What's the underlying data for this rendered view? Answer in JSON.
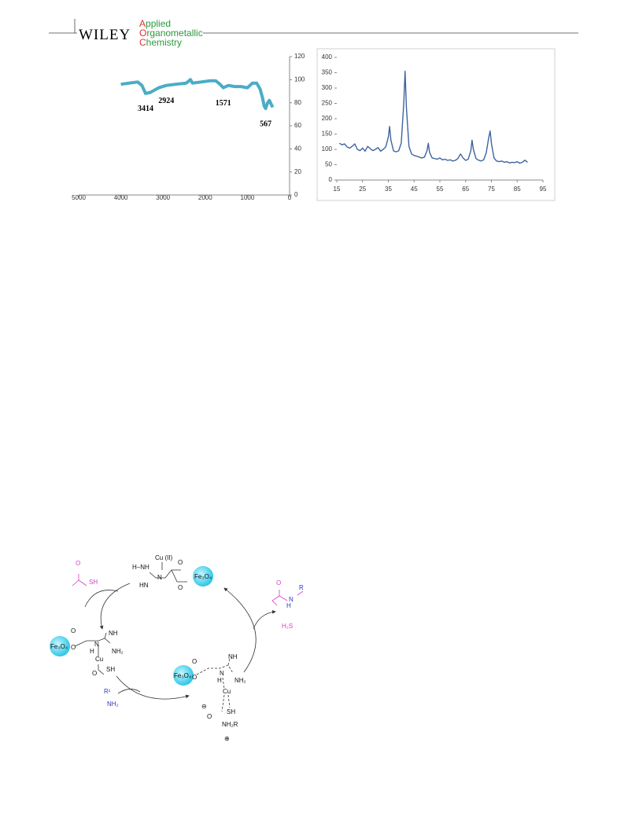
{
  "header": {
    "publisher": "WILEY",
    "journal": [
      "Applied",
      "Organometallic",
      "Chemistry"
    ]
  },
  "chart_data": [
    {
      "type": "line",
      "color": "#4bacc6",
      "x": [
        4000,
        3800,
        3600,
        3500,
        3414,
        3300,
        3100,
        2924,
        2700,
        2450,
        2350,
        2300,
        2100,
        1900,
        1750,
        1650,
        1571,
        1450,
        1300,
        1150,
        1000,
        880,
        780,
        700,
        640,
        600,
        567,
        520,
        480,
        440,
        400
      ],
      "values": [
        96,
        97,
        98,
        95,
        88,
        89,
        93,
        95,
        96,
        97,
        100,
        97,
        98,
        99,
        99,
        96,
        93,
        95,
        94,
        94,
        93,
        97,
        97,
        92,
        84,
        77,
        75,
        80,
        82,
        79,
        76
      ],
      "xlim": [
        5000,
        0
      ],
      "xticks": [
        5000,
        4000,
        3000,
        2000,
        1000,
        0
      ],
      "ylim": [
        0,
        120
      ],
      "yticks": [
        0,
        20,
        40,
        60,
        80,
        100,
        120
      ],
      "annotations": [
        3414,
        2924,
        1571,
        567
      ]
    },
    {
      "type": "line",
      "color": "#3d64a0",
      "x": [
        16,
        17,
        18,
        19,
        20,
        21,
        22,
        23,
        24,
        25,
        26,
        27,
        28,
        29,
        30,
        31,
        32,
        33,
        34,
        35,
        35.5,
        36,
        37,
        38,
        39,
        40,
        41,
        41.5,
        42,
        43,
        44,
        45,
        46,
        47,
        48,
        49,
        50,
        50.5,
        51,
        52,
        53,
        54,
        55,
        56,
        57,
        58,
        59,
        60,
        61,
        62,
        63,
        64,
        65,
        66,
        67,
        67.5,
        68,
        69,
        70,
        71,
        72,
        73,
        74,
        74.5,
        75,
        76,
        77,
        78,
        79,
        80,
        81,
        82,
        83,
        84,
        85,
        86,
        87,
        88,
        89
      ],
      "values": [
        120,
        115,
        118,
        108,
        104,
        110,
        118,
        100,
        96,
        104,
        94,
        110,
        102,
        96,
        100,
        106,
        94,
        100,
        108,
        140,
        175,
        130,
        95,
        92,
        95,
        120,
        250,
        355,
        240,
        110,
        85,
        80,
        78,
        75,
        72,
        75,
        95,
        120,
        90,
        72,
        70,
        68,
        72,
        66,
        68,
        64,
        66,
        62,
        64,
        70,
        85,
        72,
        64,
        68,
        95,
        130,
        100,
        70,
        65,
        62,
        66,
        90,
        140,
        160,
        120,
        72,
        62,
        60,
        62,
        58,
        60,
        56,
        58,
        57,
        60,
        55,
        58,
        65,
        58
      ],
      "xlim": [
        15,
        95
      ],
      "xticks": [
        15,
        25,
        35,
        45,
        55,
        65,
        75,
        85,
        95
      ],
      "ylim": [
        0,
        400
      ],
      "yticks": [
        0,
        50,
        100,
        150,
        200,
        250,
        300,
        350,
        400
      ]
    }
  ],
  "scheme": {
    "labels": [
      "Cu (II)",
      "H–NH",
      "HN",
      "N",
      "O",
      "O",
      "Fe₃O₄",
      "O",
      "SH",
      "O",
      "N",
      "H",
      "R",
      "H₂S",
      "Fe₃O₄",
      "O",
      "O",
      "NH",
      "N",
      "NH₂",
      "H",
      "Cu",
      "O",
      "SH",
      "R¹",
      "NH₂",
      "Fe₃O₄",
      "O",
      "O",
      "NH",
      "N",
      "NH₂",
      "H",
      "Cu",
      "SH",
      "O",
      "NH₂R",
      "⊖",
      "⊕"
    ]
  }
}
